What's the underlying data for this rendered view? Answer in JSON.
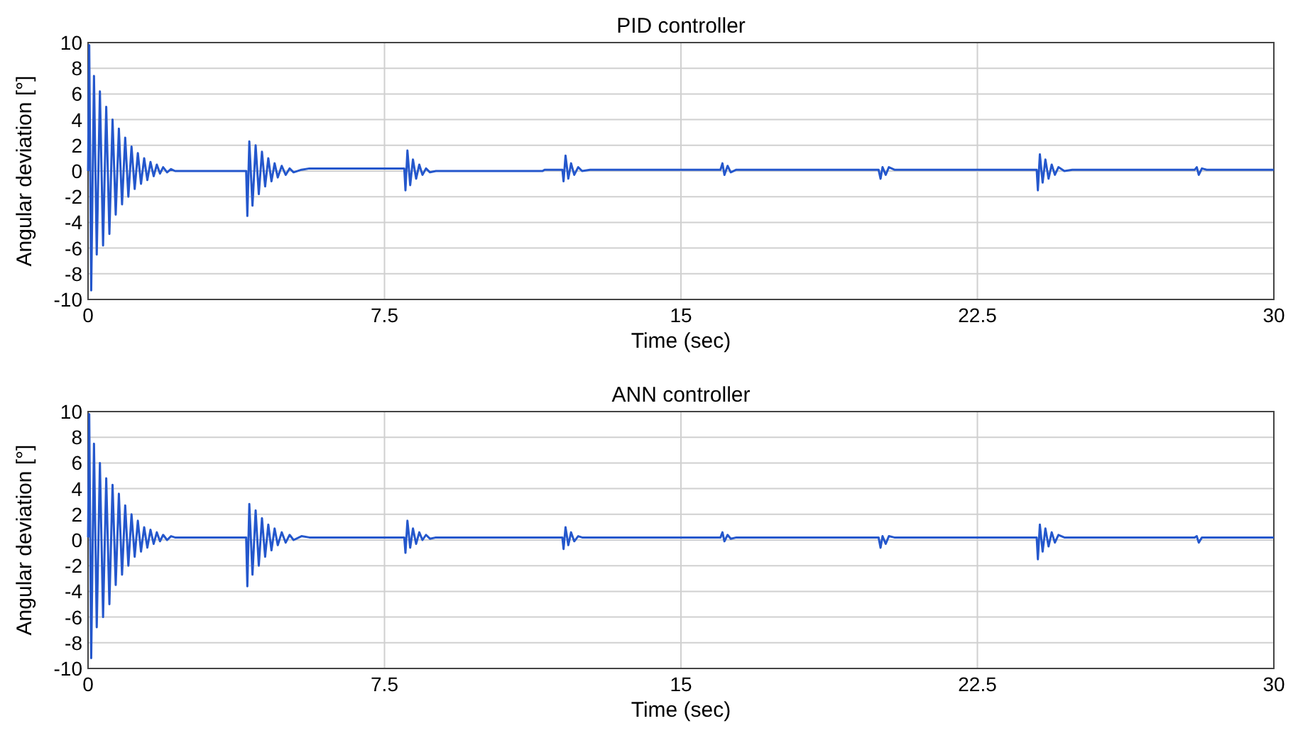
{
  "chart_data": [
    {
      "type": "line",
      "title": "PID controller",
      "xlabel": "Time (sec)",
      "ylabel": "Angular deviation [°]",
      "xlim": [
        0,
        30
      ],
      "ylim": [
        -10,
        10
      ],
      "xticks": [
        0,
        7.5,
        15,
        22.5,
        30
      ],
      "yticks": [
        -10,
        -8,
        -6,
        -4,
        -2,
        0,
        2,
        4,
        6,
        8,
        10
      ],
      "grid": true,
      "x": [
        0,
        0.03,
        0.08,
        0.15,
        0.22,
        0.3,
        0.38,
        0.46,
        0.54,
        0.62,
        0.7,
        0.78,
        0.86,
        0.94,
        1.02,
        1.1,
        1.18,
        1.26,
        1.34,
        1.42,
        1.5,
        1.58,
        1.66,
        1.74,
        1.82,
        1.9,
        2.0,
        2.1,
        2.2,
        4.0,
        4.03,
        4.08,
        4.16,
        4.24,
        4.32,
        4.4,
        4.48,
        4.56,
        4.64,
        4.72,
        4.8,
        4.9,
        5.0,
        5.1,
        5.2,
        5.4,
        5.6,
        7.9,
        8.0,
        8.03,
        8.08,
        8.15,
        8.22,
        8.3,
        8.38,
        8.46,
        8.55,
        8.65,
        8.8,
        11.5,
        11.55,
        12.0,
        12.03,
        12.08,
        12.15,
        12.22,
        12.3,
        12.4,
        12.5,
        12.7,
        16.0,
        16.05,
        16.1,
        16.18,
        16.26,
        16.4,
        20.0,
        20.05,
        20.1,
        20.18,
        20.26,
        20.4,
        24.0,
        24.03,
        24.08,
        24.15,
        24.22,
        24.3,
        24.38,
        24.46,
        24.55,
        24.7,
        24.9,
        28.0,
        28.05,
        28.1,
        28.18,
        28.3,
        30
      ],
      "series": [
        {
          "color": "#2457cc",
          "values": [
            0,
            9.8,
            -9.3,
            7.4,
            -6.5,
            6.2,
            -5.8,
            5.0,
            -4.9,
            4.0,
            -3.4,
            3.3,
            -2.6,
            2.6,
            -2.0,
            1.9,
            -1.4,
            1.4,
            -1.0,
            1.0,
            -0.7,
            0.7,
            -0.4,
            0.5,
            -0.2,
            0.3,
            -0.1,
            0.15,
            0,
            0,
            -3.5,
            2.3,
            -2.7,
            2.0,
            -1.8,
            1.5,
            -1.2,
            1.0,
            -0.8,
            0.6,
            -0.5,
            0.4,
            -0.3,
            0.2,
            -0.1,
            0.1,
            0.2,
            0.2,
            0.2,
            -1.5,
            1.6,
            -1.1,
            0.9,
            -0.6,
            0.5,
            -0.3,
            0.2,
            -0.1,
            0,
            0,
            0.1,
            0.1,
            -0.8,
            1.2,
            -0.6,
            0.6,
            -0.3,
            0.3,
            0,
            0.1,
            0.1,
            0.6,
            -0.3,
            0.4,
            -0.1,
            0.1,
            0.1,
            -0.6,
            0.3,
            -0.3,
            0.3,
            0.1,
            0.1,
            -1.5,
            1.3,
            -0.9,
            0.9,
            -0.6,
            0.5,
            -0.3,
            0.3,
            0,
            0.1,
            0.1,
            0.3,
            -0.3,
            0.2,
            0.1,
            0.1
          ]
        }
      ]
    },
    {
      "type": "line",
      "title": "ANN controller",
      "xlabel": "Time (sec)",
      "ylabel": "Angular deviation [°]",
      "xlim": [
        0,
        30
      ],
      "ylim": [
        -10,
        10
      ],
      "xticks": [
        0,
        7.5,
        15,
        22.5,
        30
      ],
      "yticks": [
        -10,
        -8,
        -6,
        -4,
        -2,
        0,
        2,
        4,
        6,
        8,
        10
      ],
      "grid": true,
      "x": [
        0,
        0.03,
        0.08,
        0.15,
        0.22,
        0.3,
        0.38,
        0.46,
        0.54,
        0.62,
        0.7,
        0.78,
        0.86,
        0.94,
        1.02,
        1.1,
        1.18,
        1.26,
        1.34,
        1.42,
        1.5,
        1.58,
        1.66,
        1.74,
        1.82,
        1.9,
        2.0,
        2.1,
        2.2,
        4.0,
        4.03,
        4.08,
        4.16,
        4.24,
        4.32,
        4.4,
        4.48,
        4.56,
        4.64,
        4.72,
        4.8,
        4.9,
        5.0,
        5.1,
        5.2,
        5.4,
        5.6,
        8.0,
        8.03,
        8.08,
        8.15,
        8.22,
        8.3,
        8.38,
        8.46,
        8.55,
        8.65,
        8.8,
        12.0,
        12.03,
        12.08,
        12.15,
        12.22,
        12.3,
        12.4,
        12.5,
        16.0,
        16.05,
        16.1,
        16.18,
        16.26,
        16.4,
        20.0,
        20.05,
        20.1,
        20.18,
        20.26,
        20.4,
        24.0,
        24.03,
        24.08,
        24.15,
        24.22,
        24.3,
        24.38,
        24.46,
        24.55,
        24.7,
        28.0,
        28.05,
        28.1,
        28.18,
        28.3,
        30
      ],
      "series": [
        {
          "color": "#2457cc",
          "values": [
            0.2,
            9.8,
            -9.2,
            7.5,
            -6.8,
            6.0,
            -6.0,
            4.8,
            -5.0,
            4.3,
            -3.5,
            3.6,
            -2.7,
            2.7,
            -2.0,
            2.0,
            -1.3,
            1.5,
            -0.9,
            1.0,
            -0.6,
            0.8,
            -0.3,
            0.6,
            -0.1,
            0.4,
            0,
            0.3,
            0.2,
            0.2,
            -3.6,
            2.8,
            -2.7,
            2.3,
            -2.0,
            1.7,
            -1.3,
            1.2,
            -0.8,
            0.9,
            -0.4,
            0.6,
            -0.2,
            0.4,
            0,
            0.3,
            0.2,
            0.2,
            -1.0,
            1.5,
            -0.6,
            0.9,
            -0.3,
            0.6,
            0,
            0.4,
            0.1,
            0.2,
            0.2,
            -0.7,
            1.0,
            -0.4,
            0.6,
            -0.1,
            0.3,
            0.2,
            0.2,
            0.6,
            -0.1,
            0.4,
            0.1,
            0.2,
            0.2,
            -0.6,
            0.3,
            -0.3,
            0.3,
            0.2,
            0.2,
            -1.5,
            1.2,
            -0.9,
            0.9,
            -0.5,
            0.6,
            -0.2,
            0.4,
            0.2,
            0.2,
            0.3,
            -0.2,
            0.2,
            0.2,
            0.2
          ]
        }
      ]
    }
  ]
}
